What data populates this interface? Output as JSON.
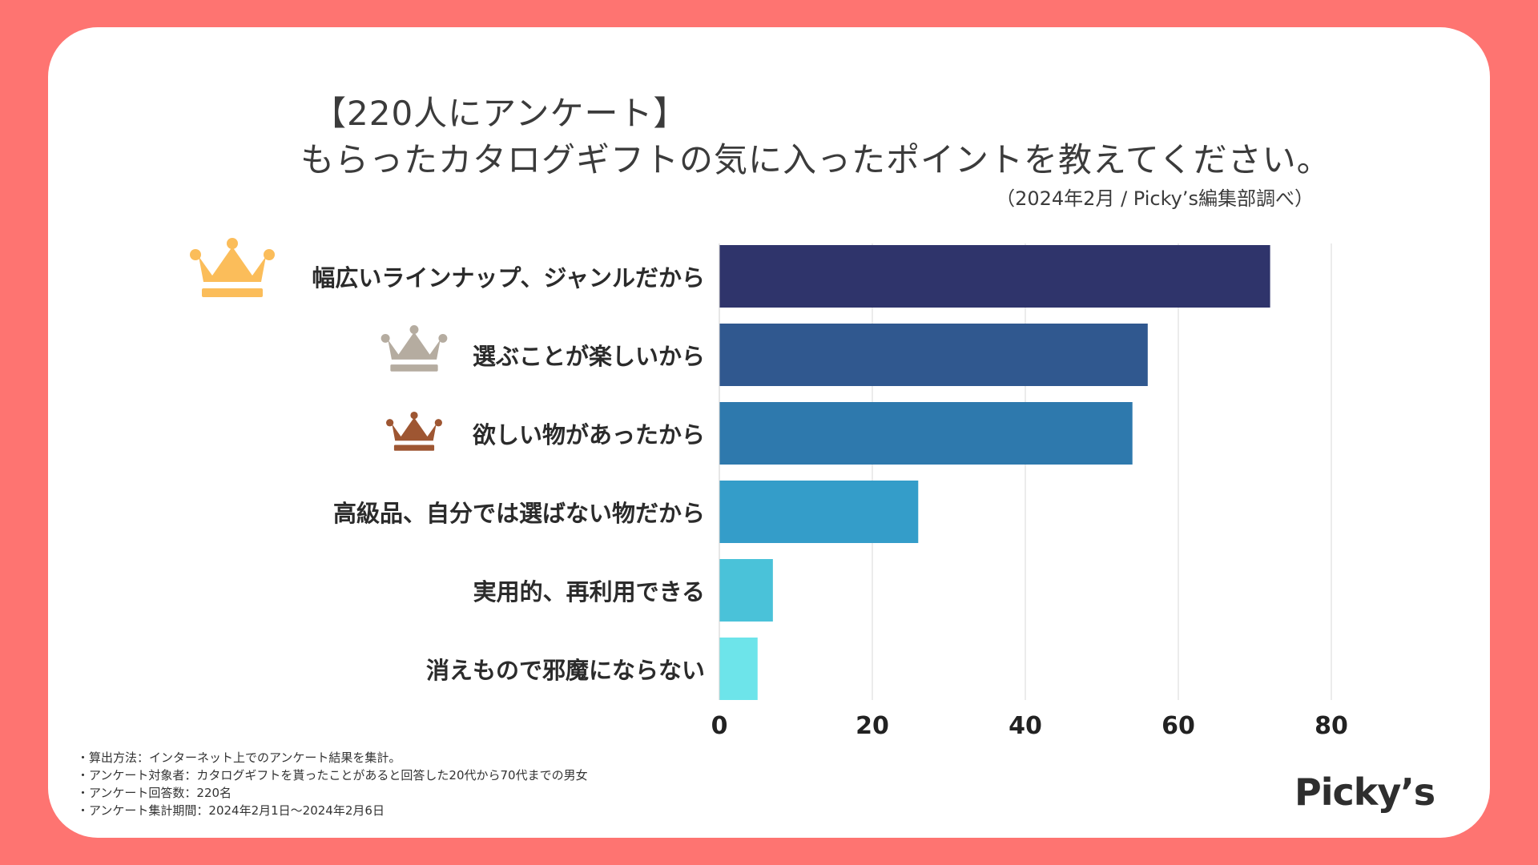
{
  "header": {
    "line1": "【220人にアンケート】",
    "line2": "もらったカタログギフトの気に入ったポイントを教えてください。",
    "source": "（2024年2月 / Picky’s編集部調べ）"
  },
  "chart_data": {
    "type": "bar",
    "orientation": "horizontal",
    "categories": [
      "幅広いラインナップ、ジャンルだから",
      "選ぶことが楽しいから",
      "欲しい物があったから",
      "高級品、自分では選ばない物だから",
      "実用的、再利用できる",
      "消えもので邪魔にならない"
    ],
    "values": [
      72,
      56,
      54,
      26,
      7,
      5
    ],
    "colors": [
      "#2f346b",
      "#30588f",
      "#2e79ad",
      "#349dc9",
      "#4ac2d9",
      "#6de4ea"
    ],
    "xlim": [
      0,
      80
    ],
    "xticks": [
      "0",
      "20",
      "40",
      "60",
      "80"
    ],
    "grid": true,
    "rank_badges": [
      {
        "rank": 1,
        "icon": "gold-crown-icon",
        "color": "#fbbd5a"
      },
      {
        "rank": 2,
        "icon": "silver-crown-icon",
        "color": "#b5aca0"
      },
      {
        "rank": 3,
        "icon": "bronze-crown-icon",
        "color": "#9e5632"
      }
    ]
  },
  "notes": [
    "算出方法：インターネット上でのアンケート結果を集計。",
    "アンケート対象者：カタログギフトを貰ったことがあると回答した20代から70代までの男女",
    "アンケート回答数：220名",
    "アンケート集計期間：2024年2月1日〜2024年2月6日"
  ],
  "brand": {
    "logo_text": "Picky’s"
  }
}
